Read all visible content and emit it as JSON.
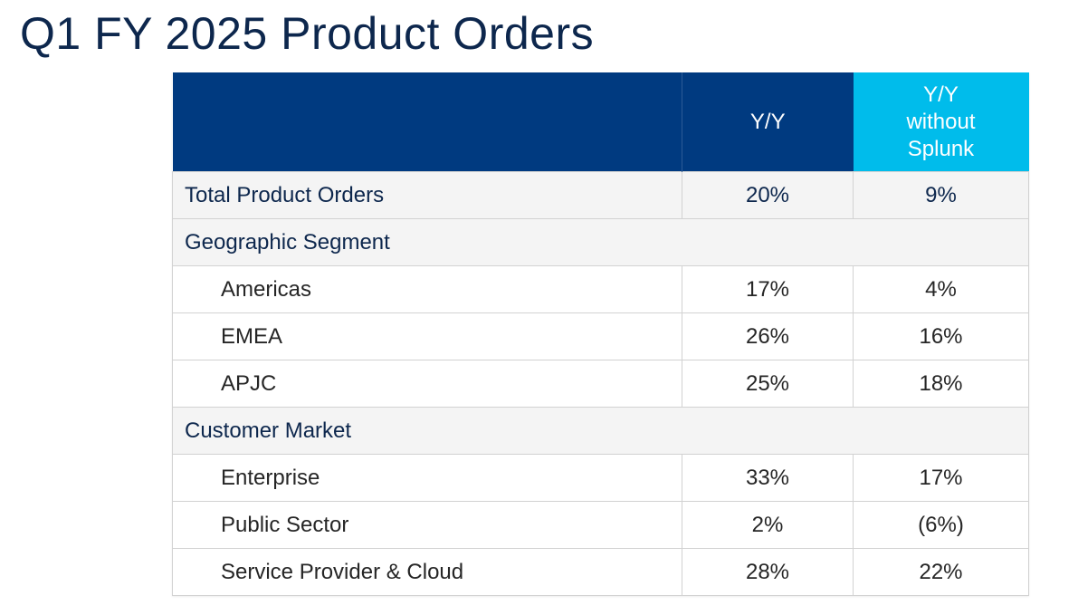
{
  "title": "Q1 FY 2025 Product Orders",
  "table": {
    "headers": {
      "blank": "",
      "yy": "Y/Y",
      "yy_ex_line1": "Y/Y",
      "yy_ex_line2": "without",
      "yy_ex_line3": "Splunk"
    },
    "rows": [
      {
        "kind": "total",
        "label": "Total Product Orders",
        "yy": "20%",
        "yy_ex": "9%"
      },
      {
        "kind": "section",
        "label": "Geographic Segment"
      },
      {
        "kind": "item",
        "label": "Americas",
        "yy": "17%",
        "yy_ex": "4%"
      },
      {
        "kind": "item",
        "label": "EMEA",
        "yy": "26%",
        "yy_ex": "16%"
      },
      {
        "kind": "item",
        "label": "APJC",
        "yy": "25%",
        "yy_ex": "18%"
      },
      {
        "kind": "section",
        "label": "Customer Market"
      },
      {
        "kind": "item",
        "label": "Enterprise",
        "yy": "33%",
        "yy_ex": "17%"
      },
      {
        "kind": "item",
        "label": "Public Sector",
        "yy": "2%",
        "yy_ex": "(6%)"
      },
      {
        "kind": "item",
        "label": "Service Provider & Cloud",
        "yy": "28%",
        "yy_ex": "22%"
      }
    ]
  },
  "colors": {
    "header_dark": "#003a80",
    "header_accent": "#00bceb",
    "title": "#0d274d",
    "row_shade": "#f4f4f4"
  }
}
